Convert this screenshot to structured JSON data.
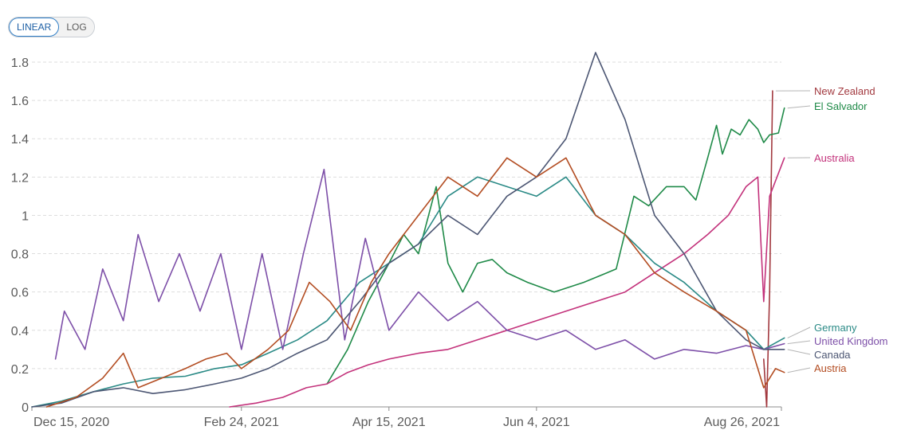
{
  "controls": {
    "scale_options": [
      "LINEAR",
      "LOG"
    ],
    "active_scale": "LINEAR"
  },
  "chart_data": {
    "type": "line",
    "title": "",
    "xlabel": "",
    "ylabel": "",
    "x_ticks": [
      "Dec 15, 2020",
      "Feb 24, 2021",
      "Apr 15, 2021",
      "Jun 4, 2021",
      "Aug 26, 2021"
    ],
    "y_ticks": [
      "0",
      "0.2",
      "0.4",
      "0.6",
      "0.8",
      "1",
      "1.2",
      "1.4",
      "1.6",
      "1.8"
    ],
    "xlim": [
      "2020-12-15",
      "2021-08-26"
    ],
    "ylim": [
      0,
      1.8
    ],
    "grid": "horizontal dashed",
    "legend": "right, labels at line ends",
    "series": [
      {
        "name": "New Zealand",
        "color": "#a2393f",
        "points": [
          [
            "2021-08-20",
            0.25
          ],
          [
            "2021-08-21",
            0.0
          ],
          [
            "2021-08-22",
            0.6
          ],
          [
            "2021-08-23",
            1.65
          ]
        ]
      },
      {
        "name": "El Salvador",
        "color": "#1f8a48",
        "points": [
          [
            "2021-03-25",
            0.12
          ],
          [
            "2021-04-01",
            0.3
          ],
          [
            "2021-04-08",
            0.55
          ],
          [
            "2021-04-15",
            0.75
          ],
          [
            "2021-04-20",
            0.9
          ],
          [
            "2021-04-25",
            0.8
          ],
          [
            "2021-05-01",
            1.15
          ],
          [
            "2021-05-05",
            0.75
          ],
          [
            "2021-05-10",
            0.6
          ],
          [
            "2021-05-15",
            0.75
          ],
          [
            "2021-05-20",
            0.77
          ],
          [
            "2021-05-25",
            0.7
          ],
          [
            "2021-06-01",
            0.65
          ],
          [
            "2021-06-10",
            0.6
          ],
          [
            "2021-06-20",
            0.65
          ],
          [
            "2021-07-01",
            0.72
          ],
          [
            "2021-07-07",
            1.1
          ],
          [
            "2021-07-12",
            1.05
          ],
          [
            "2021-07-18",
            1.15
          ],
          [
            "2021-07-24",
            1.15
          ],
          [
            "2021-07-28",
            1.08
          ],
          [
            "2021-08-01",
            1.3
          ],
          [
            "2021-08-04",
            1.47
          ],
          [
            "2021-08-06",
            1.32
          ],
          [
            "2021-08-09",
            1.45
          ],
          [
            "2021-08-12",
            1.42
          ],
          [
            "2021-08-15",
            1.5
          ],
          [
            "2021-08-18",
            1.45
          ],
          [
            "2021-08-20",
            1.38
          ],
          [
            "2021-08-22",
            1.42
          ],
          [
            "2021-08-25",
            1.43
          ],
          [
            "2021-08-27",
            1.56
          ]
        ]
      },
      {
        "name": "Australia",
        "color": "#c3327b",
        "points": [
          [
            "2021-02-20",
            0.0
          ],
          [
            "2021-03-01",
            0.02
          ],
          [
            "2021-03-10",
            0.05
          ],
          [
            "2021-03-18",
            0.1
          ],
          [
            "2021-03-25",
            0.12
          ],
          [
            "2021-04-01",
            0.18
          ],
          [
            "2021-04-08",
            0.22
          ],
          [
            "2021-04-15",
            0.25
          ],
          [
            "2021-04-25",
            0.28
          ],
          [
            "2021-05-05",
            0.3
          ],
          [
            "2021-05-15",
            0.35
          ],
          [
            "2021-05-25",
            0.4
          ],
          [
            "2021-06-04",
            0.45
          ],
          [
            "2021-06-14",
            0.5
          ],
          [
            "2021-06-24",
            0.55
          ],
          [
            "2021-07-04",
            0.6
          ],
          [
            "2021-07-14",
            0.7
          ],
          [
            "2021-07-24",
            0.8
          ],
          [
            "2021-08-01",
            0.9
          ],
          [
            "2021-08-08",
            1.0
          ],
          [
            "2021-08-14",
            1.15
          ],
          [
            "2021-08-18",
            1.2
          ],
          [
            "2021-08-20",
            0.55
          ],
          [
            "2021-08-22",
            1.1
          ],
          [
            "2021-08-27",
            1.3
          ]
        ]
      },
      {
        "name": "Germany",
        "color": "#2a8a86",
        "points": [
          [
            "2020-12-15",
            0.0
          ],
          [
            "2020-12-25",
            0.03
          ],
          [
            "2021-01-05",
            0.08
          ],
          [
            "2021-01-15",
            0.12
          ],
          [
            "2021-01-25",
            0.15
          ],
          [
            "2021-02-05",
            0.16
          ],
          [
            "2021-02-15",
            0.2
          ],
          [
            "2021-02-24",
            0.22
          ],
          [
            "2021-03-05",
            0.28
          ],
          [
            "2021-03-15",
            0.35
          ],
          [
            "2021-03-25",
            0.45
          ],
          [
            "2021-04-05",
            0.65
          ],
          [
            "2021-04-15",
            0.75
          ],
          [
            "2021-04-25",
            0.85
          ],
          [
            "2021-05-05",
            1.1
          ],
          [
            "2021-05-15",
            1.2
          ],
          [
            "2021-05-25",
            1.15
          ],
          [
            "2021-06-04",
            1.1
          ],
          [
            "2021-06-14",
            1.2
          ],
          [
            "2021-06-24",
            1.0
          ],
          [
            "2021-07-04",
            0.9
          ],
          [
            "2021-07-14",
            0.75
          ],
          [
            "2021-07-24",
            0.65
          ],
          [
            "2021-08-04",
            0.5
          ],
          [
            "2021-08-14",
            0.4
          ],
          [
            "2021-08-20",
            0.3
          ],
          [
            "2021-08-27",
            0.36
          ]
        ]
      },
      {
        "name": "United Kingdom",
        "color": "#7d4fa8",
        "points": [
          [
            "2020-12-23",
            0.25
          ],
          [
            "2020-12-26",
            0.5
          ],
          [
            "2021-01-02",
            0.3
          ],
          [
            "2021-01-08",
            0.72
          ],
          [
            "2021-01-15",
            0.45
          ],
          [
            "2021-01-20",
            0.9
          ],
          [
            "2021-01-27",
            0.55
          ],
          [
            "2021-02-03",
            0.8
          ],
          [
            "2021-02-10",
            0.5
          ],
          [
            "2021-02-17",
            0.8
          ],
          [
            "2021-02-24",
            0.3
          ],
          [
            "2021-03-03",
            0.8
          ],
          [
            "2021-03-10",
            0.3
          ],
          [
            "2021-03-17",
            0.8
          ],
          [
            "2021-03-24",
            1.24
          ],
          [
            "2021-03-31",
            0.35
          ],
          [
            "2021-04-07",
            0.88
          ],
          [
            "2021-04-15",
            0.4
          ],
          [
            "2021-04-25",
            0.6
          ],
          [
            "2021-05-05",
            0.45
          ],
          [
            "2021-05-15",
            0.55
          ],
          [
            "2021-05-25",
            0.4
          ],
          [
            "2021-06-04",
            0.35
          ],
          [
            "2021-06-14",
            0.4
          ],
          [
            "2021-06-24",
            0.3
          ],
          [
            "2021-07-04",
            0.35
          ],
          [
            "2021-07-14",
            0.25
          ],
          [
            "2021-07-24",
            0.3
          ],
          [
            "2021-08-04",
            0.28
          ],
          [
            "2021-08-14",
            0.32
          ],
          [
            "2021-08-20",
            0.3
          ],
          [
            "2021-08-27",
            0.33
          ]
        ]
      },
      {
        "name": "Canada",
        "color": "#4c5673",
        "points": [
          [
            "2020-12-15",
            0.0
          ],
          [
            "2020-12-25",
            0.02
          ],
          [
            "2021-01-05",
            0.08
          ],
          [
            "2021-01-15",
            0.1
          ],
          [
            "2021-01-25",
            0.07
          ],
          [
            "2021-02-05",
            0.09
          ],
          [
            "2021-02-15",
            0.12
          ],
          [
            "2021-02-24",
            0.15
          ],
          [
            "2021-03-05",
            0.2
          ],
          [
            "2021-03-15",
            0.28
          ],
          [
            "2021-03-25",
            0.35
          ],
          [
            "2021-04-05",
            0.55
          ],
          [
            "2021-04-15",
            0.75
          ],
          [
            "2021-04-25",
            0.85
          ],
          [
            "2021-05-05",
            1.0
          ],
          [
            "2021-05-15",
            0.9
          ],
          [
            "2021-05-25",
            1.1
          ],
          [
            "2021-06-04",
            1.2
          ],
          [
            "2021-06-14",
            1.4
          ],
          [
            "2021-06-24",
            1.85
          ],
          [
            "2021-07-04",
            1.5
          ],
          [
            "2021-07-14",
            1.0
          ],
          [
            "2021-07-24",
            0.8
          ],
          [
            "2021-08-04",
            0.5
          ],
          [
            "2021-08-14",
            0.35
          ],
          [
            "2021-08-20",
            0.3
          ],
          [
            "2021-08-27",
            0.3
          ]
        ]
      },
      {
        "name": "Austria",
        "color": "#b34d22",
        "points": [
          [
            "2020-12-20",
            0.0
          ],
          [
            "2020-12-30",
            0.05
          ],
          [
            "2021-01-08",
            0.15
          ],
          [
            "2021-01-15",
            0.28
          ],
          [
            "2021-01-20",
            0.1
          ],
          [
            "2021-01-28",
            0.15
          ],
          [
            "2021-02-05",
            0.2
          ],
          [
            "2021-02-12",
            0.25
          ],
          [
            "2021-02-19",
            0.28
          ],
          [
            "2021-02-24",
            0.2
          ],
          [
            "2021-03-05",
            0.3
          ],
          [
            "2021-03-12",
            0.4
          ],
          [
            "2021-03-19",
            0.65
          ],
          [
            "2021-03-26",
            0.55
          ],
          [
            "2021-04-02",
            0.4
          ],
          [
            "2021-04-09",
            0.65
          ],
          [
            "2021-04-15",
            0.8
          ],
          [
            "2021-04-25",
            1.0
          ],
          [
            "2021-05-05",
            1.2
          ],
          [
            "2021-05-15",
            1.1
          ],
          [
            "2021-05-25",
            1.3
          ],
          [
            "2021-06-04",
            1.2
          ],
          [
            "2021-06-14",
            1.3
          ],
          [
            "2021-06-24",
            1.0
          ],
          [
            "2021-07-04",
            0.9
          ],
          [
            "2021-07-14",
            0.7
          ],
          [
            "2021-07-24",
            0.6
          ],
          [
            "2021-08-04",
            0.5
          ],
          [
            "2021-08-14",
            0.4
          ],
          [
            "2021-08-20",
            0.1
          ],
          [
            "2021-08-24",
            0.2
          ],
          [
            "2021-08-27",
            0.18
          ]
        ]
      }
    ],
    "legend_labels": [
      {
        "series": "New Zealand",
        "label": "New Zealand"
      },
      {
        "series": "El Salvador",
        "label": "El Salvador"
      },
      {
        "series": "Australia",
        "label": "Australia"
      },
      {
        "series": "Germany",
        "label": "Germany"
      },
      {
        "series": "United Kingdom",
        "label": "United Kingdom"
      },
      {
        "series": "Canada",
        "label": "Canada"
      },
      {
        "series": "Austria",
        "label": "Austria"
      }
    ]
  }
}
